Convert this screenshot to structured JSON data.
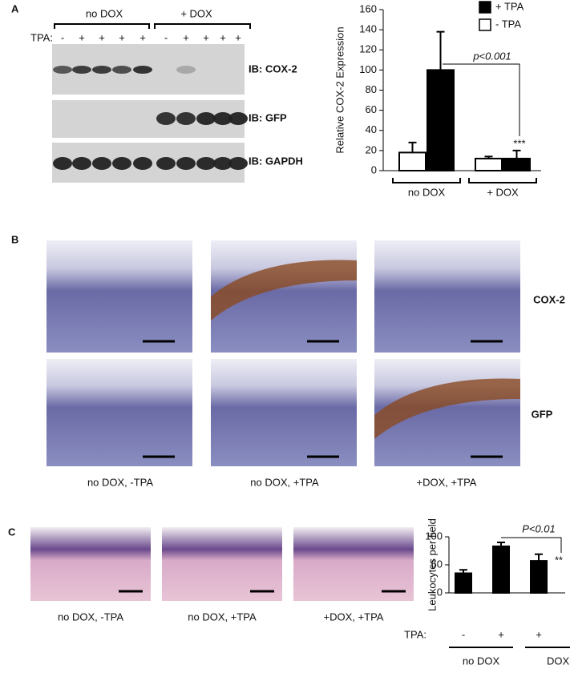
{
  "panel_labels": [
    "A",
    "B",
    "C"
  ],
  "blot": {
    "groups": [
      "no DOX",
      "+ DOX"
    ],
    "tpa_label": "TPA:",
    "tpa_signs": [
      "-",
      "+",
      "+",
      "+",
      "+",
      "-",
      "+",
      "+",
      "+",
      "+"
    ],
    "labels": [
      "IB: COX-2",
      "IB: GFP",
      "IB: GAPDH"
    ]
  },
  "histology": {
    "row_labels": [
      "COX-2",
      "GFP"
    ],
    "captions": [
      "no DOX, -TPA",
      "no DOX, +TPA",
      "+DOX, +TPA"
    ]
  },
  "he_stain": {
    "captions": [
      "no DOX, -TPA",
      "no DOX, +TPA",
      "+DOX, +TPA"
    ]
  },
  "chart_data": [
    {
      "type": "bar",
      "ylabel": "Relative COX-2 Expression",
      "categories": [
        "no DOX",
        "+ DOX"
      ],
      "series": [
        {
          "name": "+ TPA",
          "color": "#000000",
          "values": [
            100,
            12
          ],
          "errors": [
            38,
            8
          ]
        },
        {
          "name": "- TPA",
          "color": "#ffffff",
          "values": [
            18,
            12
          ],
          "errors": [
            10,
            2
          ]
        }
      ],
      "ylim": [
        0,
        160
      ],
      "yticks": [
        0,
        20,
        40,
        60,
        80,
        100,
        120,
        140,
        160
      ],
      "annotations": [
        "p<0.001",
        "***"
      ]
    },
    {
      "type": "bar",
      "ylabel": "Leukocytes per field",
      "xlabel": "TPA:",
      "categories": [
        "-",
        "+",
        "+"
      ],
      "category_groups": [
        "no DOX",
        "DOX"
      ],
      "values": [
        35,
        83,
        57
      ],
      "errors": [
        6,
        7,
        12
      ],
      "color": "#000000",
      "ylim": [
        0,
        100
      ],
      "yticks": [
        0,
        50,
        100
      ],
      "annotations": [
        "P<0.01",
        "**"
      ]
    }
  ]
}
